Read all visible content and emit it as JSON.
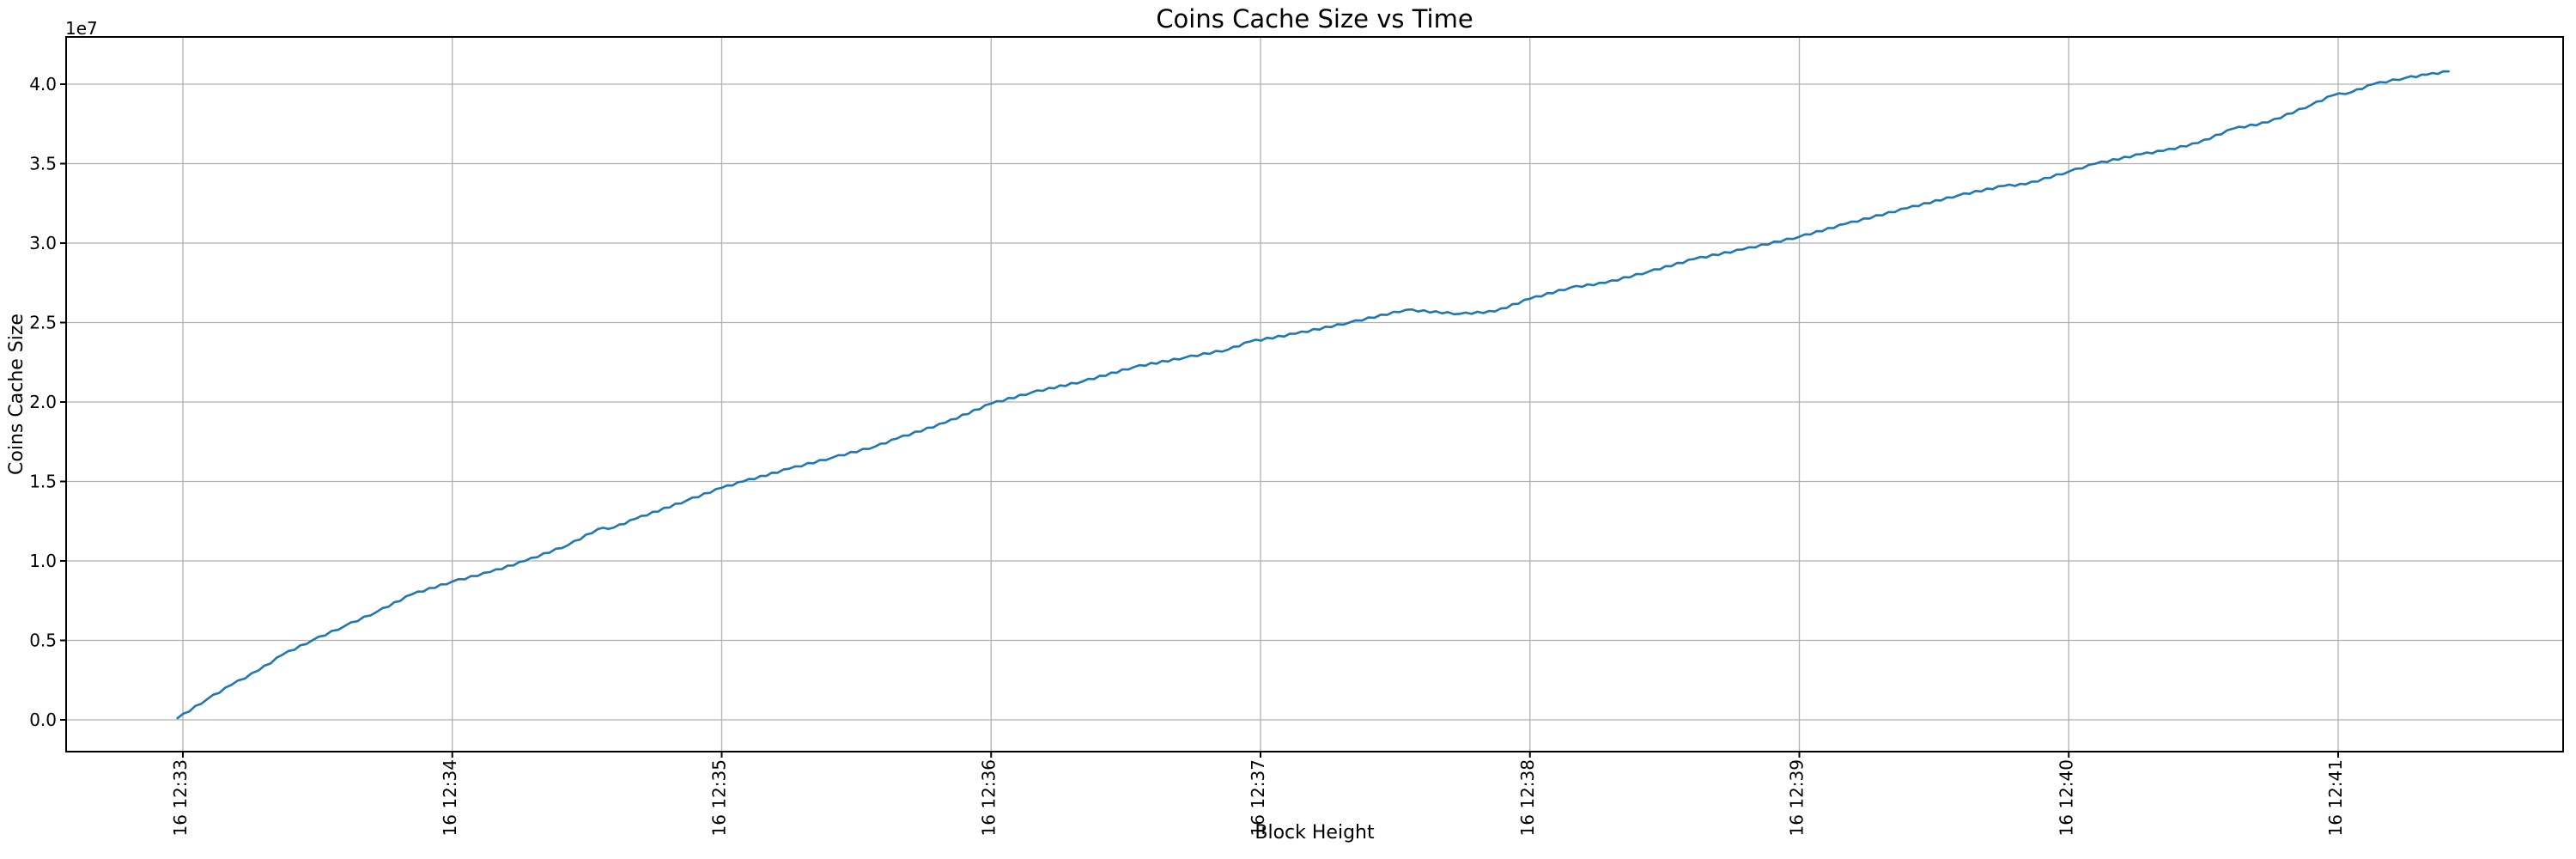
{
  "chart_data": {
    "type": "line",
    "title": "Coins Cache Size vs Time",
    "xlabel": "Block Height",
    "ylabel": "Coins Cache Size",
    "y_offset_text": "1e7",
    "grid": true,
    "legend": "none",
    "background_color": "#ffffff",
    "line_color": "#1f77b4",
    "grid_color": "#b0b0b0",
    "spine_color": "#000000",
    "x_tick_labels": [
      "16 12:33",
      "16 12:34",
      "16 12:35",
      "16 12:36",
      "16 12:37",
      "16 12:38",
      "16 12:39",
      "16 12:40",
      "16 12:41"
    ],
    "x_tick_minutes": [
      0,
      1,
      2,
      3,
      4,
      5,
      6,
      7,
      8
    ],
    "y_tick_labels": [
      "0.0",
      "0.5",
      "1.0",
      "1.5",
      "2.0",
      "2.5",
      "3.0",
      "3.5",
      "4.0"
    ],
    "y_tick_values": [
      0,
      5000000,
      10000000,
      15000000,
      20000000,
      25000000,
      30000000,
      35000000,
      40000000
    ],
    "xlim_minutes": [
      -0.43,
      8.84
    ],
    "ylim": [
      -2000000,
      43000000
    ],
    "series": [
      {
        "name": "Coins Cache Size",
        "x_minutes_from_16_12_33": [
          -0.02,
          0.09,
          0.18,
          0.28,
          0.37,
          0.48,
          0.6,
          0.72,
          0.85,
          1.0,
          1.14,
          1.27,
          1.43,
          1.54,
          1.6,
          1.68,
          1.87,
          2.0,
          2.08,
          2.25,
          2.41,
          2.57,
          2.65,
          2.83,
          3.0,
          3.15,
          3.34,
          3.53,
          3.72,
          3.88,
          3.96,
          4.13,
          4.33,
          4.54,
          4.74,
          4.87,
          5.0,
          5.15,
          5.28,
          5.44,
          5.61,
          5.79,
          6.0,
          6.17,
          6.4,
          6.59,
          6.76,
          6.84,
          7.0,
          7.1,
          7.27,
          7.35,
          7.48,
          7.61,
          7.74,
          7.9,
          7.98,
          8.05,
          8.13,
          8.25,
          8.33,
          8.41
        ],
        "values": [
          100000,
          1300000,
          2200000,
          3100000,
          4100000,
          5000000,
          5900000,
          6800000,
          7900000,
          8700000,
          9300000,
          10000000,
          11000000,
          12000000,
          12100000,
          12650000,
          13800000,
          14600000,
          15000000,
          15800000,
          16500000,
          17200000,
          17700000,
          18700000,
          19900000,
          20600000,
          21300000,
          22200000,
          22800000,
          23300000,
          23800000,
          24300000,
          25000000,
          25800000,
          25550000,
          25700000,
          26500000,
          27200000,
          27500000,
          28200000,
          29000000,
          29600000,
          30400000,
          31200000,
          32200000,
          33000000,
          33600000,
          33700000,
          34500000,
          35000000,
          35600000,
          35800000,
          36300000,
          37200000,
          37600000,
          38700000,
          39300000,
          39500000,
          40000000,
          40400000,
          40600000,
          40800000
        ]
      }
    ]
  }
}
